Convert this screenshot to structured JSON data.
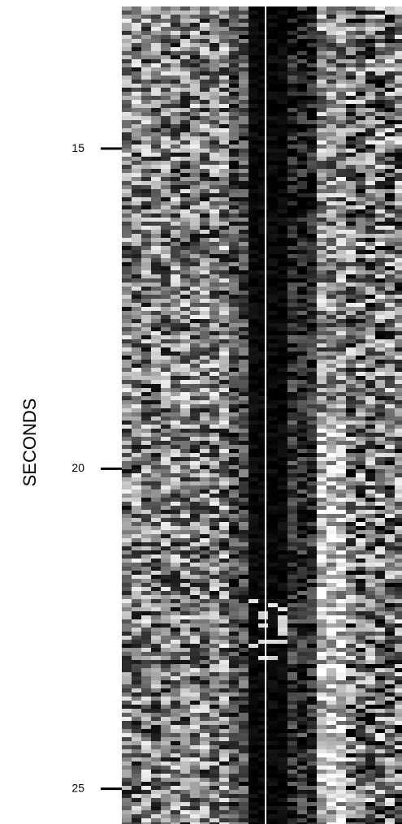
{
  "chart_data": {
    "type": "raster",
    "y_label": "SECONDS",
    "ylim": [
      12.78,
      25.55
    ],
    "yticks": [
      15,
      20,
      25
    ],
    "y_inverted": true
  }
}
